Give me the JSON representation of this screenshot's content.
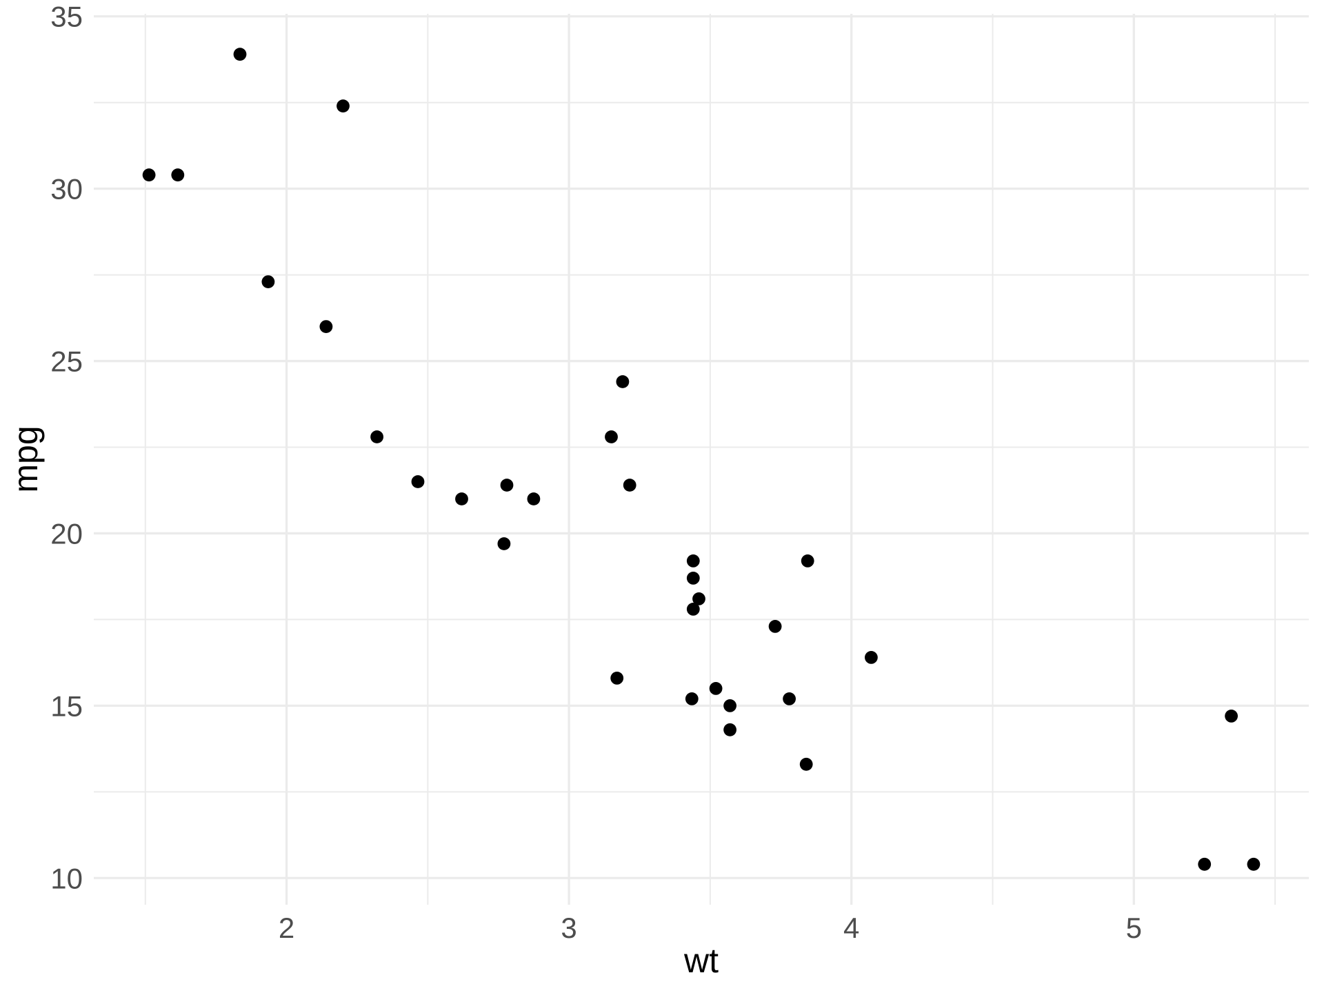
{
  "chart_data": {
    "type": "scatter",
    "title": "",
    "xlabel": "wt",
    "ylabel": "mpg",
    "xlim": [
      1.3175,
      5.6195
    ],
    "ylim": [
      9.225,
      35.075
    ],
    "x_ticks": [
      2,
      3,
      4,
      5
    ],
    "y_ticks": [
      10,
      15,
      20,
      25,
      30,
      35
    ],
    "x_minor_ticks": [
      1.5,
      2.5,
      3.5,
      4.5,
      5.5
    ],
    "y_minor_ticks": [
      12.5,
      17.5,
      22.5,
      27.5,
      32.5
    ],
    "grid": true,
    "legend": false,
    "series": [
      {
        "name": "points",
        "points": [
          [
            2.62,
            21.0
          ],
          [
            2.875,
            21.0
          ],
          [
            2.32,
            22.8
          ],
          [
            3.215,
            21.4
          ],
          [
            3.44,
            18.7
          ],
          [
            3.46,
            18.1
          ],
          [
            3.57,
            14.3
          ],
          [
            3.19,
            24.4
          ],
          [
            3.15,
            22.8
          ],
          [
            3.44,
            19.2
          ],
          [
            3.44,
            17.8
          ],
          [
            4.07,
            16.4
          ],
          [
            3.73,
            17.3
          ],
          [
            3.78,
            15.2
          ],
          [
            5.25,
            10.4
          ],
          [
            5.424,
            10.4
          ],
          [
            5.345,
            14.7
          ],
          [
            2.2,
            32.4
          ],
          [
            1.615,
            30.4
          ],
          [
            1.835,
            33.9
          ],
          [
            2.465,
            21.5
          ],
          [
            3.52,
            15.5
          ],
          [
            3.435,
            15.2
          ],
          [
            3.84,
            13.3
          ],
          [
            3.845,
            19.2
          ],
          [
            1.935,
            27.3
          ],
          [
            2.14,
            26.0
          ],
          [
            1.513,
            30.4
          ],
          [
            3.17,
            15.8
          ],
          [
            2.77,
            19.7
          ],
          [
            3.57,
            15.0
          ],
          [
            2.78,
            21.4
          ]
        ]
      }
    ]
  },
  "style": {
    "background_color": "#FFFFFF",
    "grid_major_color": "#EBEBEB",
    "grid_minor_color": "#EBEBEB",
    "point_color": "#000000",
    "tick_label_color": "#4D4D4D",
    "axis_title_color": "#000000"
  }
}
